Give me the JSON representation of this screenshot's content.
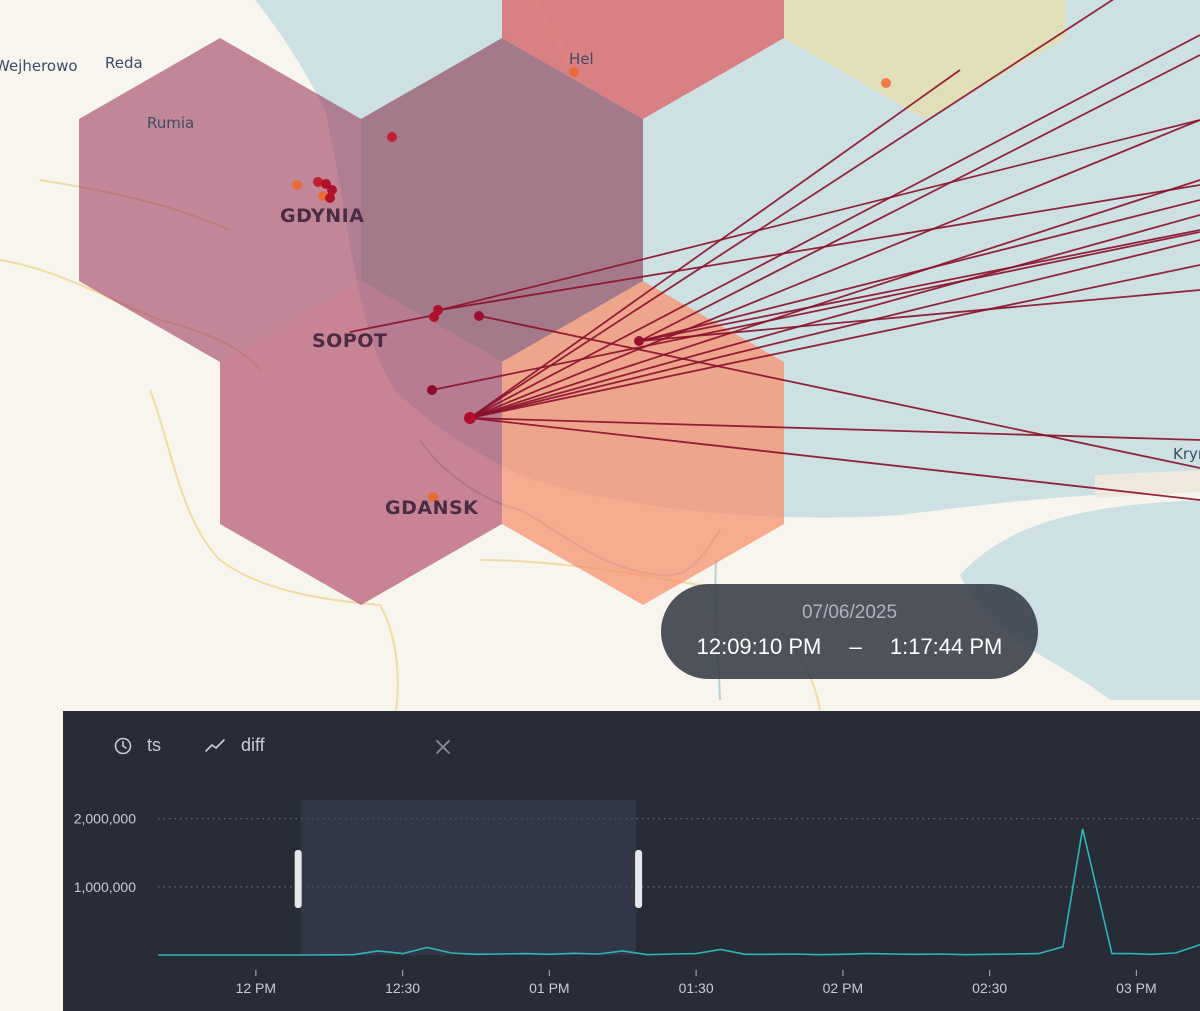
{
  "map": {
    "town_labels": [
      "Wejherowo",
      "Reda",
      "Rumia",
      "Hel",
      "Kryn"
    ],
    "city_labels": [
      "GDYNIA",
      "SOPOT",
      "GDANSK"
    ],
    "colors": {
      "land": "#f7f5ee",
      "water": "#cde1e4",
      "hex_dark": "#9c3c5e",
      "hex_pink": "#d96f72",
      "hex_salmon": "#f7916f",
      "hex_yellow": "#e3dfb2",
      "arc": "#8b0f2a",
      "point": "#b0102a",
      "point_orange": "#e86b3a"
    }
  },
  "time_range": {
    "date": "07/06/2025",
    "start": "12:09:10 PM",
    "separator": "–",
    "end": "1:17:44 PM"
  },
  "panel": {
    "x_field": {
      "icon": "clock-icon",
      "label": "ts"
    },
    "y_field": {
      "icon": "line-chart-icon",
      "label": "diff"
    },
    "close_icon": "close-icon"
  },
  "chart_data": {
    "type": "line",
    "title": "",
    "xlabel": "ts",
    "ylabel": "diff",
    "x_ticks": [
      "12 PM",
      "12:30",
      "01 PM",
      "01:30",
      "02 PM",
      "02:30",
      "03 PM"
    ],
    "y_ticks": [
      "2,000,000",
      "1,000,000"
    ],
    "y_tick_values": [
      2000000,
      1000000
    ],
    "ylim": [
      0,
      2700000
    ],
    "xlim_minutes": [
      -20,
      193
    ],
    "grid": "horizontal dotted",
    "color": "#2fb6b4",
    "brush": {
      "start": "12:09:10 PM",
      "end": "1:17:44 PM"
    },
    "series": [
      {
        "x_minutes": [
          -20,
          0,
          10,
          20,
          25,
          30,
          35,
          40,
          45,
          50,
          55,
          60,
          65,
          70,
          75,
          80,
          85,
          90,
          95,
          100,
          105,
          110,
          115,
          120,
          125,
          130,
          135,
          140,
          145,
          150,
          155,
          160,
          165,
          169,
          175,
          179,
          183,
          188,
          193
        ],
        "values": [
          0,
          0,
          0,
          5000,
          60000,
          20000,
          110000,
          30000,
          10000,
          15000,
          20000,
          10000,
          25000,
          15000,
          60000,
          5000,
          15000,
          20000,
          80000,
          10000,
          10000,
          15000,
          5000,
          10000,
          20000,
          15000,
          10000,
          15000,
          5000,
          10000,
          15000,
          20000,
          120000,
          1850000,
          20000,
          20000,
          10000,
          30000,
          150000
        ]
      }
    ]
  }
}
